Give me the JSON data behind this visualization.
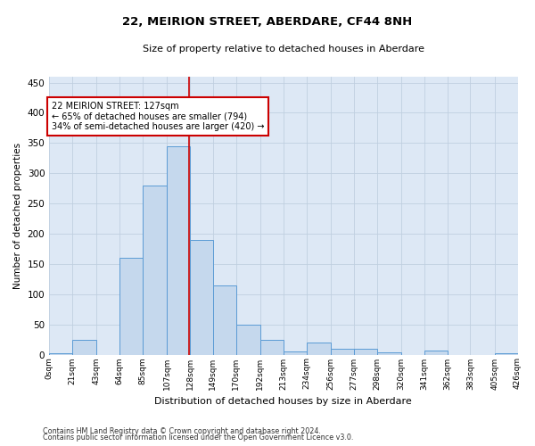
{
  "title": "22, MEIRION STREET, ABERDARE, CF44 8NH",
  "subtitle": "Size of property relative to detached houses in Aberdare",
  "xlabel": "Distribution of detached houses by size in Aberdare",
  "ylabel": "Number of detached properties",
  "footer_line1": "Contains HM Land Registry data © Crown copyright and database right 2024.",
  "footer_line2": "Contains public sector information licensed under the Open Government Licence v3.0.",
  "bar_color": "#c5d8ed",
  "bar_edge_color": "#5b9bd5",
  "property_line_color": "#cc0000",
  "property_size": 127,
  "annotation_text": "22 MEIRION STREET: 127sqm\n← 65% of detached houses are smaller (794)\n34% of semi-detached houses are larger (420) →",
  "annotation_box_color": "#cc0000",
  "bin_edges": [
    0,
    21,
    43,
    64,
    85,
    107,
    128,
    149,
    170,
    192,
    213,
    234,
    256,
    277,
    298,
    320,
    341,
    362,
    383,
    405,
    426
  ],
  "bin_labels": [
    "0sqm",
    "21sqm",
    "43sqm",
    "64sqm",
    "85sqm",
    "107sqm",
    "128sqm",
    "149sqm",
    "170sqm",
    "192sqm",
    "213sqm",
    "234sqm",
    "256sqm",
    "277sqm",
    "298sqm",
    "320sqm",
    "341sqm",
    "362sqm",
    "383sqm",
    "405sqm",
    "426sqm"
  ],
  "bar_heights": [
    2,
    25,
    0,
    160,
    280,
    345,
    190,
    115,
    50,
    25,
    5,
    20,
    10,
    10,
    3,
    0,
    7,
    0,
    0,
    2
  ],
  "ylim": [
    0,
    460
  ],
  "yticks": [
    0,
    50,
    100,
    150,
    200,
    250,
    300,
    350,
    400,
    450
  ],
  "background_color": "#ffffff",
  "plot_bg_color": "#dde8f5",
  "grid_color": "#c0cfe0"
}
